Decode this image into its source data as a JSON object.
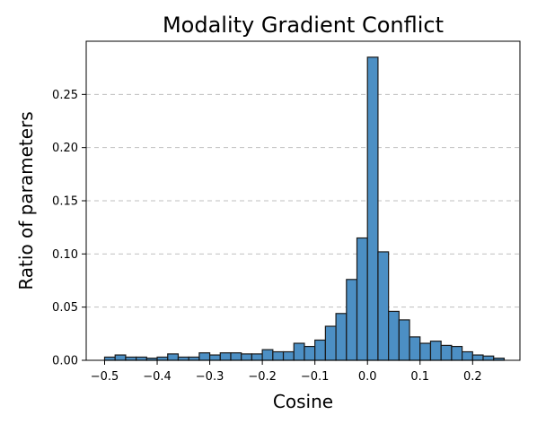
{
  "chart_data": {
    "type": "bar",
    "title": "Modality Gradient Conflict",
    "xlabel": "Cosine",
    "ylabel": "Ratio of parameters",
    "xlim": [
      -0.535,
      0.29
    ],
    "ylim": [
      0,
      0.3
    ],
    "xticks": [
      -0.5,
      -0.4,
      -0.3,
      -0.2,
      -0.1,
      0.0,
      0.1,
      0.2
    ],
    "xtick_labels": [
      "−0.5",
      "−0.4",
      "−0.3",
      "−0.2",
      "−0.1",
      "0.0",
      "0.1",
      "0.2"
    ],
    "yticks": [
      0,
      0.05,
      0.1,
      0.15,
      0.2,
      0.25
    ],
    "ytick_labels": [
      "0.00",
      "0.05",
      "0.10",
      "0.15",
      "0.20",
      "0.25"
    ],
    "grid": "y",
    "bar_color": "#4c8fc4",
    "bin_edges": [
      -0.5,
      -0.48,
      -0.46,
      -0.44,
      -0.42,
      -0.4,
      -0.38,
      -0.36,
      -0.34,
      -0.32,
      -0.3,
      -0.28,
      -0.26,
      -0.24,
      -0.22,
      -0.2,
      -0.18,
      -0.16,
      -0.14,
      -0.12,
      -0.1,
      -0.08,
      -0.06,
      -0.04,
      -0.02,
      0.0,
      0.02,
      0.04,
      0.06,
      0.08,
      0.1,
      0.12,
      0.14,
      0.16,
      0.18,
      0.2,
      0.22,
      0.24,
      0.26
    ],
    "values": [
      0.003,
      0.005,
      0.003,
      0.003,
      0.002,
      0.003,
      0.006,
      0.003,
      0.003,
      0.007,
      0.005,
      0.007,
      0.007,
      0.006,
      0.006,
      0.01,
      0.008,
      0.008,
      0.016,
      0.013,
      0.019,
      0.032,
      0.044,
      0.076,
      0.115,
      0.285,
      0.102,
      0.046,
      0.038,
      0.022,
      0.016,
      0.018,
      0.014,
      0.013,
      0.008,
      0.005,
      0.004,
      0.002,
      0.003
    ]
  }
}
